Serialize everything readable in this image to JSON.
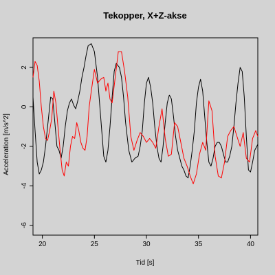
{
  "chart_data": {
    "type": "line",
    "title": "Tekopper, X+Z-akse",
    "xlabel": "Tid [s]",
    "ylabel": "Acceleration [m/s^2]",
    "xlim": [
      19.1,
      40.7
    ],
    "ylim": [
      -6.5,
      3.5
    ],
    "xticks": [
      20,
      25,
      30,
      35,
      40
    ],
    "yticks": [
      -6,
      -4,
      -2,
      0,
      2
    ],
    "grid": false,
    "colors": {
      "background": "#d3d3d3",
      "axes": "#000000"
    },
    "series": [
      {
        "color": "#000000",
        "x": [
          19.1,
          19.3,
          19.5,
          19.7,
          19.9,
          20.1,
          20.3,
          20.6,
          20.8,
          21.0,
          21.2,
          21.4,
          21.6,
          21.8,
          22.0,
          22.2,
          22.4,
          22.6,
          22.8,
          23.0,
          23.2,
          23.4,
          23.6,
          23.8,
          24.0,
          24.2,
          24.4,
          24.7,
          25.0,
          25.3,
          25.6,
          25.9,
          26.1,
          26.3,
          26.5,
          26.7,
          26.9,
          27.1,
          27.4,
          27.6,
          27.8,
          28.0,
          28.3,
          28.6,
          28.9,
          29.2,
          29.4,
          29.6,
          29.8,
          30.0,
          30.2,
          30.4,
          30.6,
          30.8,
          31.0,
          31.2,
          31.4,
          31.6,
          31.8,
          32.0,
          32.2,
          32.4,
          32.6,
          32.8,
          33.0,
          33.2,
          33.4,
          33.6,
          33.8,
          34.0,
          34.2,
          34.4,
          34.6,
          34.8,
          35.0,
          35.2,
          35.4,
          35.6,
          35.8,
          36.0,
          36.2,
          36.4,
          36.6,
          36.8,
          37.0,
          37.2,
          37.4,
          37.6,
          37.8,
          38.0,
          38.2,
          38.4,
          38.6,
          38.8,
          39.0,
          39.2,
          39.4,
          39.6,
          39.8,
          40.0,
          40.2,
          40.4,
          40.7
        ],
        "y": [
          0.5,
          -1.2,
          -2.8,
          -3.4,
          -3.2,
          -2.8,
          -2.0,
          -0.5,
          0.5,
          0.4,
          -0.8,
          -2.0,
          -2.2,
          -2.6,
          -2.0,
          -1.0,
          -0.2,
          0.2,
          0.4,
          0.1,
          -0.1,
          0.3,
          0.8,
          1.5,
          2.0,
          2.6,
          3.1,
          3.2,
          2.8,
          1.5,
          -0.5,
          -2.5,
          -2.8,
          -2.2,
          -1.0,
          0.5,
          1.8,
          2.2,
          2.0,
          1.5,
          0.5,
          -0.8,
          -2.2,
          -2.8,
          -2.6,
          -2.5,
          -2.0,
          -1.2,
          0.2,
          1.2,
          1.5,
          1.0,
          0.2,
          -1.0,
          -2.0,
          -2.6,
          -2.8,
          -2.0,
          -0.8,
          0.2,
          0.6,
          0.4,
          -0.5,
          -1.5,
          -2.2,
          -2.6,
          -3.0,
          -3.2,
          -3.5,
          -3.6,
          -3.0,
          -2.2,
          -1.2,
          0.2,
          1.0,
          1.4,
          0.8,
          -0.5,
          -1.8,
          -2.8,
          -3.0,
          -2.6,
          -2.0,
          -1.8,
          -1.8,
          -2.0,
          -2.4,
          -2.8,
          -2.8,
          -2.5,
          -2.0,
          -1.0,
          0.2,
          1.2,
          2.0,
          1.8,
          0.5,
          -1.5,
          -3.2,
          -3.3,
          -2.8,
          -2.2,
          -1.9
        ]
      },
      {
        "color": "#ff0000",
        "x": [
          19.1,
          19.3,
          19.5,
          19.7,
          19.9,
          20.1,
          20.3,
          20.5,
          20.7,
          20.9,
          21.1,
          21.3,
          21.5,
          21.7,
          21.9,
          22.1,
          22.3,
          22.5,
          22.7,
          22.9,
          23.1,
          23.3,
          23.5,
          23.7,
          23.9,
          24.1,
          24.3,
          24.5,
          24.7,
          25.0,
          25.3,
          25.6,
          25.9,
          26.1,
          26.3,
          26.5,
          26.7,
          27.0,
          27.3,
          27.6,
          27.9,
          28.2,
          28.5,
          28.8,
          29.1,
          29.4,
          29.7,
          30.0,
          30.3,
          30.6,
          30.9,
          31.2,
          31.5,
          31.8,
          32.1,
          32.4,
          32.7,
          33.0,
          33.3,
          33.6,
          33.9,
          34.2,
          34.5,
          34.8,
          35.1,
          35.4,
          35.7,
          36.0,
          36.3,
          36.6,
          36.9,
          37.2,
          37.5,
          37.8,
          38.1,
          38.4,
          38.7,
          39.0,
          39.3,
          39.6,
          39.9,
          40.2,
          40.5,
          40.7
        ],
        "y": [
          1.5,
          2.3,
          2.1,
          1.3,
          0.0,
          -1.0,
          -1.6,
          -1.7,
          -1.2,
          -0.6,
          0.8,
          0.2,
          -1.0,
          -2.2,
          -3.2,
          -3.5,
          -2.8,
          -3.0,
          -2.0,
          -1.5,
          -1.6,
          -0.8,
          -1.2,
          -1.8,
          -2.1,
          -2.2,
          -1.5,
          0.0,
          0.8,
          1.9,
          1.2,
          1.4,
          1.5,
          0.8,
          1.2,
          0.4,
          0.2,
          1.5,
          2.8,
          2.8,
          1.8,
          0.5,
          -1.5,
          -2.2,
          -1.7,
          -1.3,
          -1.5,
          -1.8,
          -1.6,
          -1.8,
          -2.1,
          -1.0,
          -0.1,
          -1.6,
          -2.5,
          -2.4,
          -0.8,
          -1.0,
          -1.8,
          -2.6,
          -3.0,
          -3.5,
          -3.9,
          -3.4,
          -2.4,
          -1.8,
          -2.2,
          0.3,
          -0.2,
          -2.5,
          -3.5,
          -3.6,
          -2.8,
          -1.5,
          -1.2,
          -1.0,
          -1.5,
          -2.0,
          -1.3,
          -2.6,
          -2.8,
          -1.6,
          -1.2,
          -1.5
        ]
      }
    ]
  }
}
